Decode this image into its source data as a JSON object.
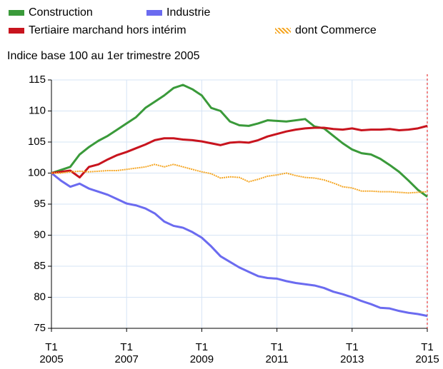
{
  "chart_data": {
    "type": "line",
    "subtitle": "Indice base 100 au 1er trimestre 2005",
    "categories": [
      "T1 2005",
      null,
      null,
      null,
      null,
      null,
      null,
      null,
      "T1 2007",
      null,
      null,
      null,
      null,
      null,
      null,
      null,
      "T1 2009",
      null,
      null,
      null,
      null,
      null,
      null,
      null,
      "T1 2011",
      null,
      null,
      null,
      null,
      null,
      null,
      null,
      "T1 2013",
      null,
      null,
      null,
      null,
      null,
      null,
      null,
      "T1 2015"
    ],
    "series": [
      {
        "name": "Construction",
        "color": "#3a9a3a",
        "style": "solid",
        "values": [
          100,
          100.5,
          101,
          103,
          104.2,
          105.2,
          106,
          107,
          108,
          109,
          110.5,
          111.5,
          112.5,
          113.7,
          114.2,
          113.5,
          112.5,
          110.5,
          110,
          108.3,
          107.7,
          107.6,
          108,
          108.5,
          108.4,
          108.3,
          108.5,
          108.7,
          107.5,
          107.2,
          106,
          104.8,
          103.8,
          103.2,
          103,
          102.3,
          101.3,
          100.2,
          98.8,
          97.3,
          96.2
        ]
      },
      {
        "name": "Industrie",
        "color": "#6b6bf0",
        "style": "solid",
        "values": [
          100,
          98.8,
          97.8,
          98.3,
          97.5,
          97,
          96.5,
          95.8,
          95.1,
          94.8,
          94.3,
          93.5,
          92.2,
          91.5,
          91.2,
          90.5,
          89.6,
          88.2,
          86.6,
          85.7,
          84.8,
          84.1,
          83.4,
          83.1,
          83,
          82.6,
          82.3,
          82.1,
          81.9,
          81.5,
          80.9,
          80.5,
          80,
          79.4,
          78.9,
          78.3,
          78.2,
          77.8,
          77.5,
          77.3,
          77
        ]
      },
      {
        "name": "Tertiaire marchand hors intérim",
        "color": "#c8141e",
        "style": "solid",
        "values": [
          100,
          100.2,
          100.4,
          99.3,
          101,
          101.4,
          102.2,
          102.9,
          103.4,
          104,
          104.6,
          105.3,
          105.6,
          105.6,
          105.4,
          105.3,
          105.1,
          104.8,
          104.5,
          104.9,
          105,
          104.9,
          105.3,
          105.9,
          106.3,
          106.7,
          107,
          107.2,
          107.3,
          107.3,
          107.1,
          107,
          107.2,
          106.9,
          107,
          107,
          107.1,
          106.9,
          107,
          107.2,
          107.6
        ]
      },
      {
        "name": "dont Commerce",
        "color": "#f5a623",
        "style": "dotted",
        "values": [
          100,
          100,
          100.2,
          100.3,
          100.2,
          100.3,
          100.4,
          100.4,
          100.6,
          100.8,
          101,
          101.4,
          101,
          101.4,
          101,
          100.6,
          100.2,
          99.9,
          99.2,
          99.4,
          99.3,
          98.6,
          99,
          99.5,
          99.7,
          100,
          99.6,
          99.3,
          99.2,
          98.9,
          98.4,
          97.8,
          97.6,
          97.1,
          97.1,
          97,
          97,
          96.9,
          96.8,
          96.9,
          97
        ]
      }
    ],
    "ylim": [
      75,
      115
    ],
    "yticks": [
      75,
      80,
      85,
      90,
      95,
      100,
      105,
      110,
      115
    ],
    "grid": true
  }
}
